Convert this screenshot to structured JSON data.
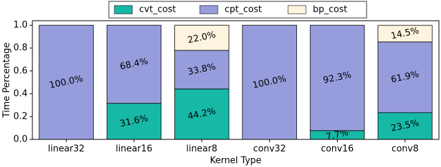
{
  "chart_data": {
    "type": "stacked_bar",
    "x_label": "Kernel Type",
    "y_label": "Time Percentage",
    "categories": [
      "linear32",
      "linear16",
      "linear8",
      "conv32",
      "conv16",
      "conv8"
    ],
    "series": [
      {
        "name": "cvt_cost",
        "color": "#17b8a6",
        "values": [
          0,
          0.316,
          0.442,
          0,
          0.077,
          0.235
        ],
        "value_labels": [
          null,
          "31.6%",
          "44.2%",
          null,
          "7.7%",
          "23.5%"
        ]
      },
      {
        "name": "cpt_cost",
        "color": "#979ddc",
        "values": [
          1.0,
          0.684,
          0.338,
          1.0,
          0.923,
          0.619
        ],
        "value_labels": [
          "100.0%",
          "68.4%",
          "33.8%",
          "100.0%",
          "92.3%",
          "61.9%"
        ]
      },
      {
        "name": "bp_cost",
        "color": "#fdf4e0",
        "values": [
          0,
          0,
          0.22,
          0,
          0,
          0.145
        ],
        "value_labels": [
          null,
          null,
          "22.0%",
          null,
          null,
          "14.5%"
        ]
      }
    ],
    "ylim": [
      0,
      1.04
    ],
    "yticks": [
      {
        "value": 0,
        "label": "0.0"
      },
      0.2,
      0.4,
      0.6,
      0.8,
      {
        "value": 1,
        "label": "1.0"
      }
    ],
    "legend": "top"
  }
}
